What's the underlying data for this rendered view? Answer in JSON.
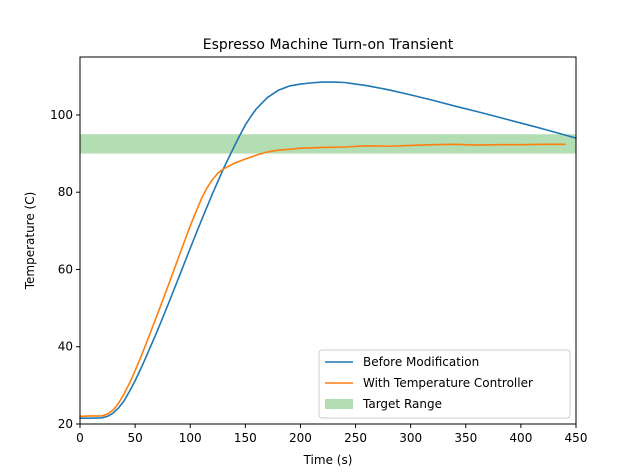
{
  "chart_data": {
    "type": "line",
    "title": "Espresso Machine Turn-on Transient",
    "xlabel": "Time (s)",
    "ylabel": "Temperature (C)",
    "xlim": [
      0,
      450
    ],
    "ylim": [
      20,
      115
    ],
    "xticks": [
      0,
      50,
      100,
      150,
      200,
      250,
      300,
      350,
      400,
      450
    ],
    "yticks": [
      20,
      40,
      60,
      80,
      100
    ],
    "grid": false,
    "legend_position": "lower-right",
    "band": {
      "name": "Target Range",
      "y_low": 90,
      "y_high": 95,
      "color": "#2ca02c",
      "opacity": 0.36
    },
    "series": [
      {
        "name": "Before Modification",
        "color": "#1f77b4",
        "x": [
          0,
          10,
          20,
          25,
          30,
          35,
          40,
          45,
          50,
          55,
          60,
          70,
          80,
          90,
          100,
          110,
          120,
          130,
          140,
          145,
          150,
          155,
          160,
          170,
          180,
          190,
          200,
          210,
          220,
          230,
          240,
          250,
          260,
          280,
          300,
          320,
          340,
          360,
          380,
          400,
          420,
          440,
          450
        ],
        "y": [
          21.5,
          21.5,
          21.6,
          22.0,
          22.8,
          24.2,
          26.0,
          28.5,
          31.2,
          34.2,
          37.4,
          44.0,
          51.0,
          58.2,
          65.5,
          72.6,
          79.5,
          86.0,
          91.9,
          94.7,
          97.4,
          99.6,
          101.6,
          104.5,
          106.4,
          107.5,
          108.0,
          108.3,
          108.5,
          108.5,
          108.4,
          108.0,
          107.6,
          106.5,
          105.2,
          103.8,
          102.3,
          100.9,
          99.4,
          97.9,
          96.4,
          94.8,
          94.0
        ]
      },
      {
        "name": "With Temperature Controller",
        "color": "#ff7f0e",
        "x": [
          0,
          10,
          20,
          25,
          30,
          35,
          40,
          45,
          50,
          55,
          60,
          70,
          80,
          90,
          100,
          110,
          115,
          120,
          125,
          130,
          140,
          150,
          160,
          170,
          180,
          190,
          200,
          220,
          240,
          260,
          280,
          300,
          320,
          340,
          360,
          380,
          400,
          420,
          440
        ],
        "y": [
          22.0,
          22.1,
          22.1,
          22.6,
          23.6,
          25.4,
          27.8,
          30.6,
          33.8,
          37.2,
          40.8,
          48.2,
          55.8,
          63.6,
          71.3,
          78.2,
          81.0,
          83.2,
          84.9,
          86.0,
          87.5,
          88.6,
          89.6,
          90.4,
          90.9,
          91.1,
          91.4,
          91.6,
          91.7,
          92.0,
          91.9,
          92.1,
          92.3,
          92.4,
          92.2,
          92.3,
          92.3,
          92.4,
          92.4
        ]
      }
    ]
  }
}
